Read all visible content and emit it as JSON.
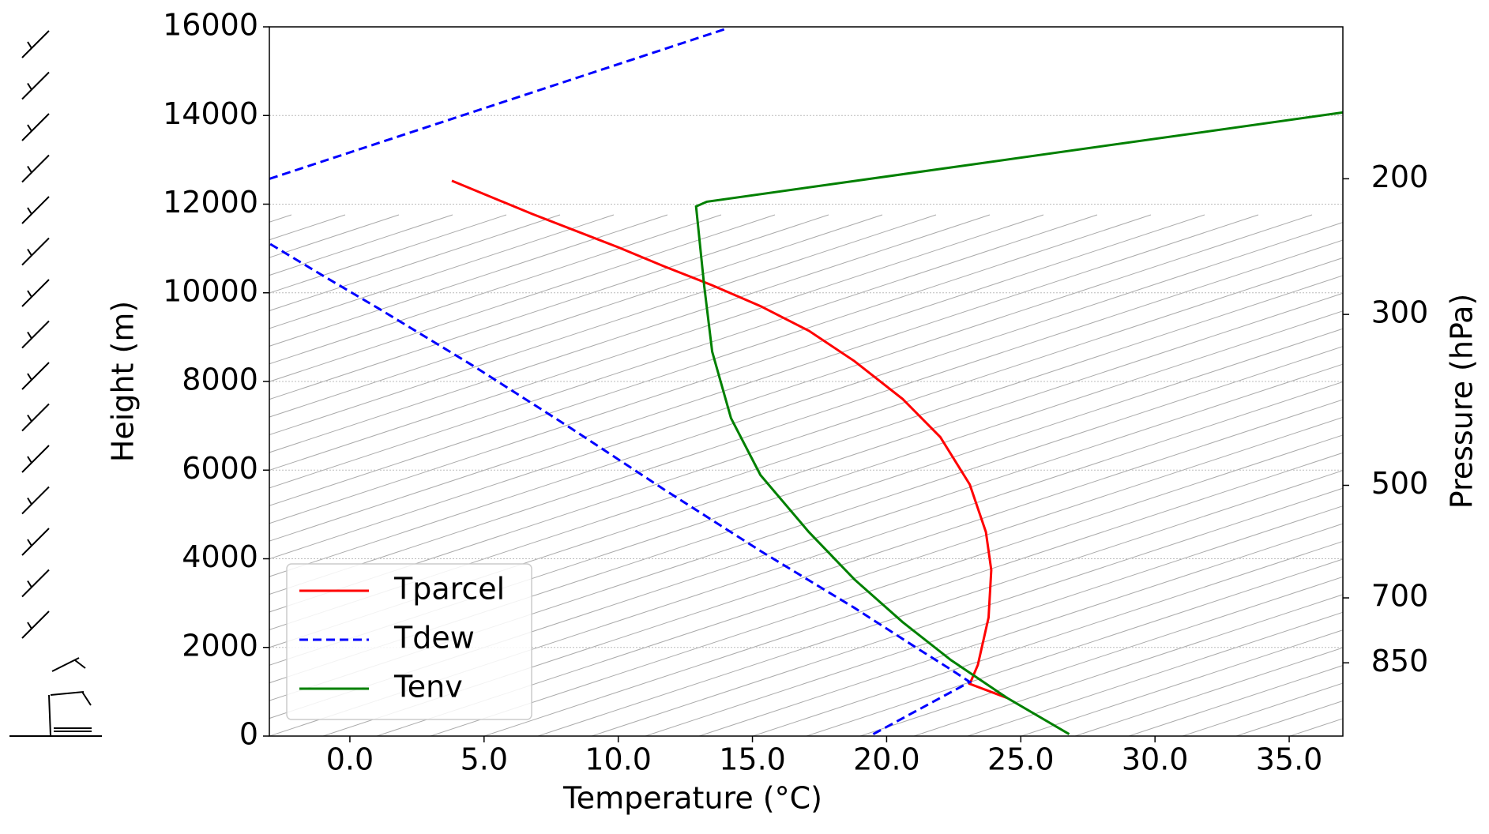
{
  "chart_data": {
    "type": "line",
    "xlabel": "Temperature (°C)",
    "ylabel": "Height (m)",
    "y2label": "Pressure (hPa)",
    "xlim": [
      -3,
      37
    ],
    "ylim": [
      0,
      16000
    ],
    "xticks": [
      {
        "value": 0,
        "label": "0.0"
      },
      {
        "value": 5,
        "label": "5.0"
      },
      {
        "value": 10,
        "label": "10.0"
      },
      {
        "value": 15,
        "label": "15.0"
      },
      {
        "value": 20,
        "label": "20.0"
      },
      {
        "value": 25,
        "label": "25.0"
      },
      {
        "value": 30,
        "label": "30.0"
      },
      {
        "value": 35,
        "label": "35.0"
      }
    ],
    "yticks": [
      0,
      2000,
      4000,
      6000,
      8000,
      10000,
      12000,
      14000,
      16000
    ],
    "y2lim": [
      1058,
      127
    ],
    "y2scale": "log",
    "y2ticks": [
      850,
      700,
      500,
      300,
      200
    ],
    "grid": true,
    "legend": "lower left",
    "series": [
      {
        "name": "Tparcel",
        "color": "#ff0000",
        "linestyle": "solid",
        "x": [
          24.5,
          23.1,
          23.4,
          23.8,
          23.9,
          23.7,
          23.1,
          22.0,
          20.6,
          18.8,
          17.1,
          15.3,
          13.5,
          11.7,
          10.0,
          6.8,
          3.8
        ],
        "values": [
          857,
          1178,
          1606,
          2677,
          3747,
          4604,
          5675,
          6745,
          7602,
          8458,
          9143,
          9700,
          10171,
          10600,
          11028,
          11777,
          12527
        ]
      },
      {
        "name": "Tdew",
        "color": "#0000ff",
        "linestyle": "dashed",
        "x": [
          19.5,
          23.1,
          22.4,
          21.0,
          18.8,
          15.3,
          11.7,
          8.2,
          4.6,
          1.1,
          -1.0,
          -3.0,
          null,
          -3.0,
          14.0
        ],
        "values": [
          43,
          1221,
          1499,
          2034,
          2891,
          4176,
          5567,
          6959,
          8351,
          9636,
          10385,
          11113,
          null,
          12570,
          15953
        ]
      },
      {
        "name": "Tenv",
        "color": "#008000",
        "linestyle": "solid",
        "x": [
          26.8,
          24.5,
          22.4,
          20.6,
          18.8,
          17.1,
          15.3,
          14.2,
          13.5,
          13.2,
          12.9,
          13.3,
          37.0
        ],
        "values": [
          43,
          857,
          1713,
          2570,
          3533,
          4604,
          5889,
          7173,
          8672,
          10171,
          11949,
          12056,
          14069
        ]
      }
    ]
  }
}
